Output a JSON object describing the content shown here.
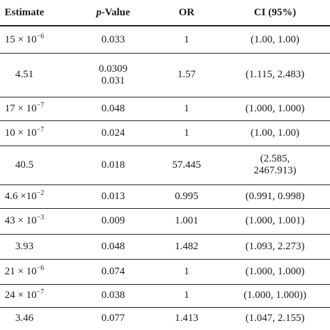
{
  "table": {
    "headers": {
      "estimate": "Estimate",
      "pvalue_prefix": "p",
      "pvalue_suffix": "-Value",
      "or": "OR",
      "ci": "CI (95%)"
    },
    "rows": [
      {
        "estimate": "15 × 10",
        "exp": "−6",
        "pvalue": [
          "0.033"
        ],
        "or": "1",
        "ci": [
          "(1.00, 1.00)"
        ]
      },
      {
        "estimate": "4.51",
        "exp": "",
        "pvalue": [
          "0.0309",
          "0.031"
        ],
        "or": "1.57",
        "ci": [
          "(1.115, 2.483)"
        ]
      },
      {
        "estimate": "17 × 10",
        "exp": "−7",
        "pvalue": [
          "0.048"
        ],
        "or": "1",
        "ci": [
          "(1.000, 1.000)"
        ]
      },
      {
        "estimate": "10 × 10",
        "exp": "−7",
        "pvalue": [
          "0.024"
        ],
        "or": "1",
        "ci": [
          "(1.00, 1.00)"
        ]
      },
      {
        "estimate": "40.5",
        "exp": "",
        "pvalue": [
          "0.018"
        ],
        "or": "57.445",
        "ci": [
          "(2.585,",
          "2467.913)"
        ]
      },
      {
        "estimate": "4.6 ×10",
        "exp": "−2",
        "pvalue": [
          "0.013"
        ],
        "or": "0.995",
        "ci": [
          "(0.991, 0.998)"
        ]
      },
      {
        "estimate": "43 × 10",
        "exp": "−3",
        "pvalue": [
          "0.009"
        ],
        "or": "1.001",
        "ci": [
          "(1.000, 1.001)"
        ]
      },
      {
        "estimate": "3.93",
        "exp": "",
        "pvalue": [
          "0.048"
        ],
        "or": "1.482",
        "ci": [
          "(1.093, 2.273)"
        ]
      },
      {
        "estimate": "21 × 10",
        "exp": "−6",
        "pvalue": [
          "0.074"
        ],
        "or": "1",
        "ci": [
          "(1.000, 1.000)"
        ]
      },
      {
        "estimate": "24 × 10",
        "exp": "−7",
        "pvalue": [
          "0.038"
        ],
        "or": "1",
        "ci": [
          "(1.000, 1.000))"
        ]
      },
      {
        "estimate": "3.46",
        "exp": "",
        "pvalue": [
          "0.077"
        ],
        "or": "1.413",
        "ci": [
          "(1.047, 2.155)"
        ]
      }
    ]
  }
}
